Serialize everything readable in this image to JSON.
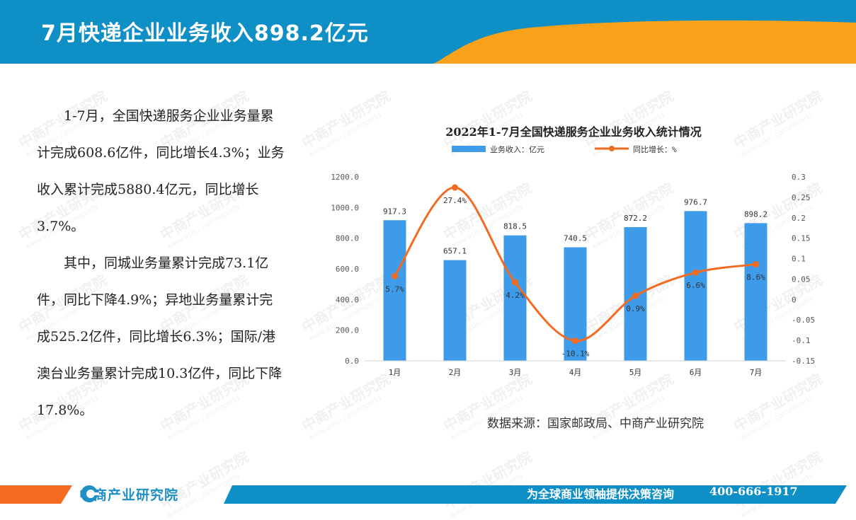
{
  "header": {
    "title": "7月快递企业业务收入898.2亿元",
    "colors": {
      "blue": "#0e8fc6",
      "orange": "#f7a21a"
    }
  },
  "summary": {
    "paragraph1": "1-7月，全国快递服务企业业务量累计完成608.6亿件，同比增长4.3%；业务收入累计完成5880.4亿元，同比增长3.7%。",
    "paragraph2": "其中，同城业务量累计完成73.1亿件，同比下降4.9%；异地业务量累计完成525.2亿件，同比增长6.3%；国际/港澳台业务量累计完成10.3亿件，同比下降17.8%。"
  },
  "chart_data": {
    "type": "bar+line",
    "title": "2022年1-7月全国快递服务企业业务收入统计情况",
    "categories": [
      "1月",
      "2月",
      "3月",
      "4月",
      "5月",
      "6月",
      "7月"
    ],
    "series": [
      {
        "name": "业务收入：亿元",
        "type": "bar",
        "axis": "left",
        "color": "#3d9be9",
        "values": [
          917.3,
          657.1,
          818.5,
          740.5,
          872.2,
          976.7,
          898.2
        ],
        "labels": [
          "917.3",
          "657.1",
          "818.5",
          "740.5",
          "872.2",
          "976.7",
          "898.2"
        ]
      },
      {
        "name": "同比增长：%",
        "type": "line",
        "axis": "right",
        "color": "#f26b21",
        "values": [
          0.057,
          0.274,
          0.042,
          -0.101,
          0.009,
          0.066,
          0.086
        ],
        "labels": [
          "5.7%",
          "27.4%",
          "4.2%",
          "-10.1%",
          "0.9%",
          "6.6%",
          "8.6%"
        ]
      }
    ],
    "y_left": {
      "ylim": [
        0,
        1200
      ],
      "ticks": [
        0,
        200,
        400,
        600,
        800,
        1000,
        1200
      ],
      "tick_labels": [
        "0.0",
        "200.0",
        "400.0",
        "600.0",
        "800.0",
        "1000.0",
        "1200.0"
      ]
    },
    "y_right": {
      "ylim": [
        -0.15,
        0.3
      ],
      "ticks": [
        -0.15,
        -0.1,
        -0.05,
        0,
        0.05,
        0.1,
        0.15,
        0.2,
        0.25,
        0.3
      ],
      "tick_labels": [
        "-0.15",
        "-0.1",
        "-0.05",
        "0",
        "0.05",
        "0.1",
        "0.15",
        "0.2",
        "0.25",
        "0.3"
      ]
    },
    "legend": "top",
    "grid": false
  },
  "source": "数据来源：国家邮政局、中商产业研究院",
  "watermark": {
    "text": "中商产业研究院",
    "sub": "www.askci.com/reports"
  },
  "footer": {
    "logo_text": "中商产业研究院",
    "slogan": "为全球商业领袖提供决策咨询",
    "phone": "400-666-1917"
  }
}
